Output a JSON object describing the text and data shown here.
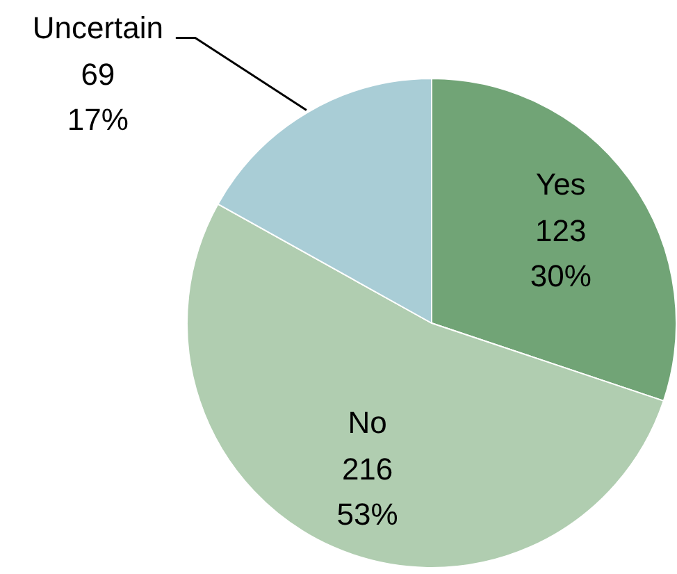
{
  "chart_data": {
    "type": "pie",
    "categories": [
      "Yes",
      "No",
      "Uncertain"
    ],
    "values": [
      123,
      216,
      69
    ],
    "colors": [
      "#71a476",
      "#b0cdb0",
      "#a9cdd6"
    ],
    "value_labels": [
      "123\n30%",
      "216\n53%",
      "69\n17%"
    ]
  }
}
